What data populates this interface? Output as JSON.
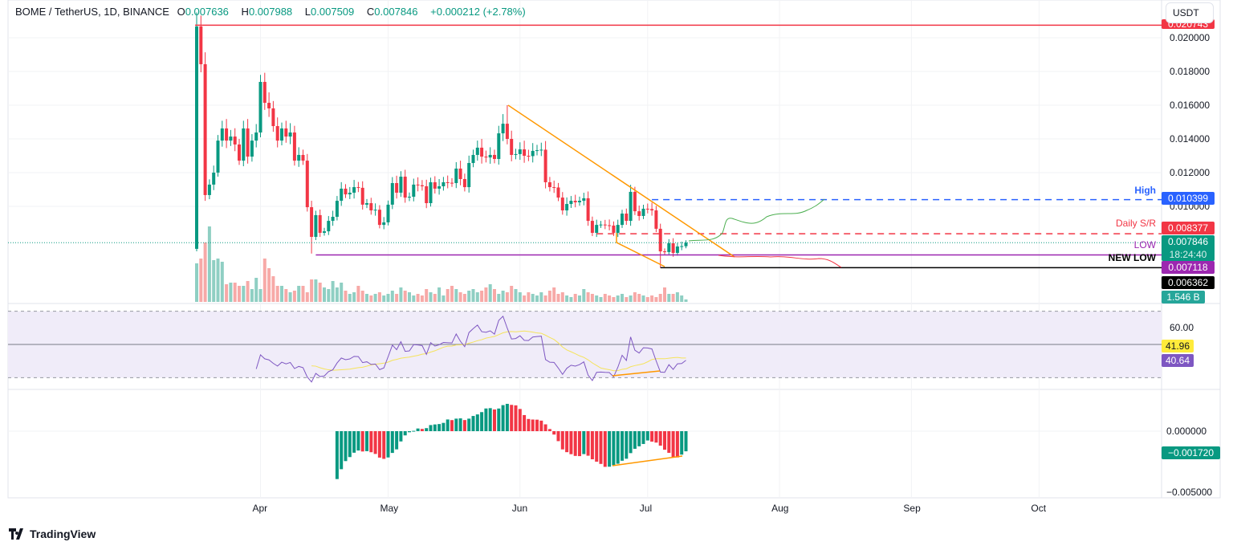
{
  "header": {
    "symbol": "BOME / TetherUS, 1D, BINANCE",
    "open_label": "O",
    "open": "0.007636",
    "high_label": "H",
    "high": "0.007988",
    "low_label": "L",
    "low": "0.007509",
    "close_label": "C",
    "close": "0.007846",
    "change": "+0.000212 (+2.78%)"
  },
  "currency_button": "USDT",
  "footer": {
    "brand": "TradingView"
  },
  "colors": {
    "up": "#089981",
    "down": "#f23645",
    "vol_up": "#8fcfc3",
    "vol_down": "#f7a9a7",
    "rsi": "#7e57c2",
    "rsi_ma": "#f5e35b",
    "rsi_band": "#f0ecf9",
    "trendline": "#ff9800",
    "high_line": "#2962ff",
    "sr_line": "#f23645",
    "low_line": "#9c27b0",
    "new_low_line": "#000000",
    "projection_up": "#4caf50",
    "projection_down": "#f23645"
  },
  "chart_data": {
    "type": "candlestick",
    "x_ticks": [
      "Apr",
      "May",
      "Jun",
      "Jul",
      "Aug",
      "Sep",
      "Oct"
    ],
    "price_ticks": [
      "0.020000",
      "0.018000",
      "0.016000",
      "0.014000",
      "0.012000",
      "0.010000"
    ],
    "price_tick_values": [
      0.02,
      0.018,
      0.016,
      0.014,
      0.012,
      0.01
    ],
    "first_open": 0.00748,
    "last_candle": {
      "open": 0.007636,
      "high": 0.007988,
      "low": 0.007509,
      "close": 0.007846
    },
    "closes": [
      0.02067,
      0.01843,
      0.01067,
      0.01129,
      0.012,
      0.0139,
      0.01462,
      0.0139,
      0.01414,
      0.01367,
      0.01271,
      0.01462,
      0.01295,
      0.0139,
      0.01438,
      0.01738,
      0.01614,
      0.01581,
      0.01476,
      0.0139,
      0.01462,
      0.01414,
      0.01438,
      0.01271,
      0.01305,
      0.01271,
      0.00995,
      0.00819,
      0.00948,
      0.00843,
      0.00852,
      0.00914,
      0.00938,
      0.01033,
      0.01105,
      0.01071,
      0.01081,
      0.01114,
      0.0111,
      0.0101,
      0.01019,
      0.00976,
      0.0098,
      0.0089,
      0.00905,
      0.0101,
      0.01138,
      0.01081,
      0.01176,
      0.01052,
      0.01057,
      0.01129,
      0.01125,
      0.01119,
      0.01019,
      0.01143,
      0.01105,
      0.01119,
      0.01143,
      0.0114,
      0.01138,
      0.01224,
      0.01162,
      0.01114,
      0.01257,
      0.01305,
      0.01348,
      0.01295,
      0.0129,
      0.01305,
      0.01281,
      0.01433,
      0.0149,
      0.014,
      0.01305,
      0.0131,
      0.01338,
      0.013,
      0.01298,
      0.01329,
      0.01333,
      0.01336,
      0.01143,
      0.01114,
      0.01112,
      0.01052,
      0.00976,
      0.01014,
      0.01033,
      0.01024,
      0.01033,
      0.01048,
      0.00914,
      0.00843,
      0.0089,
      0.00892,
      0.00888,
      0.00886,
      0.00843,
      0.0089,
      0.00957,
      0.00914,
      0.01086,
      0.00971,
      0.00943,
      0.00986,
      0.00984,
      0.00976,
      0.00867,
      0.00733,
      0.00729,
      0.00781,
      0.00724,
      0.00762,
      0.00764,
      0.007846
    ],
    "volumes_billions": [
      24,
      27,
      37,
      47,
      26,
      27,
      25,
      11,
      12,
      12,
      10,
      10,
      13,
      8,
      15,
      8,
      27,
      21,
      16,
      10,
      10,
      8,
      6,
      7,
      10,
      10,
      6,
      14,
      14,
      12,
      9,
      8,
      13,
      9,
      12,
      7,
      5,
      6,
      10,
      7,
      5,
      4,
      5,
      6,
      4,
      5,
      7,
      5,
      9,
      7,
      6,
      4,
      5,
      4,
      8,
      6,
      5,
      9,
      4,
      8,
      10,
      8,
      6,
      5,
      7,
      8,
      6,
      7,
      9,
      11,
      8,
      5,
      7,
      6,
      10,
      8,
      6,
      4,
      6,
      5,
      4,
      6,
      4,
      7,
      9,
      5,
      6,
      4,
      3,
      5,
      4,
      8,
      6,
      5,
      4,
      3,
      5,
      4,
      3,
      4,
      5,
      3,
      4,
      6,
      5,
      4,
      3,
      4,
      3,
      5,
      9,
      5,
      5,
      6,
      4,
      1.546
    ],
    "levels": {
      "top": {
        "value": 0.020743,
        "label_text": "0.020743"
      },
      "high": {
        "value": 0.010399,
        "label_text": "0.010399",
        "name": "High"
      },
      "daily_sr": {
        "value": 0.008377,
        "label_text": "0.008377",
        "name": "Daily S/R"
      },
      "last": {
        "value": 0.007846,
        "label_text": "0.007846",
        "countdown": "18:24:40"
      },
      "low": {
        "value": 0.007118,
        "label_text": "0.007118",
        "name": "LOW"
      },
      "new_low": {
        "value": 0.006362,
        "label_text": "0.006362",
        "name": "NEW LOW"
      },
      "volume": {
        "label_text": "1.546 B"
      }
    },
    "rsi": {
      "ticks": [
        "60.00"
      ],
      "ma_value": "41.96",
      "value": "40.64",
      "upper": 70,
      "lower": 30,
      "mid": 50
    },
    "oscillator": {
      "ticks": [
        "0.000000",
        "−0.005000"
      ],
      "tick_values": [
        0,
        -0.005
      ],
      "value": "−0.001720"
    }
  }
}
